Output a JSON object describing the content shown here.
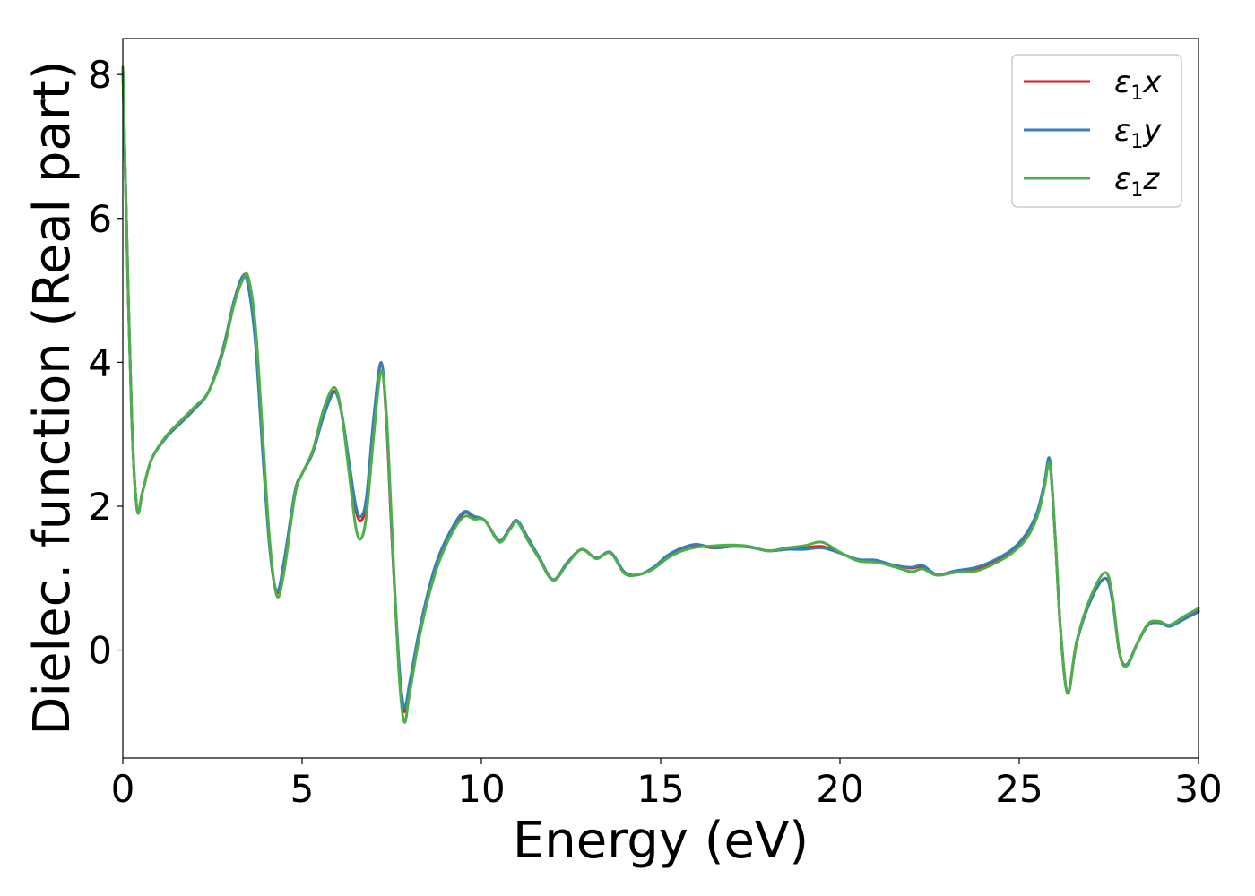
{
  "chart_data": {
    "type": "line",
    "xlabel": "Energy (eV)",
    "ylabel": "Dielec. function (Real part)",
    "xlim": [
      0,
      30
    ],
    "ylim": [
      -1.5,
      8.5
    ],
    "x_ticks": [
      0,
      5,
      10,
      15,
      20,
      25,
      30
    ],
    "y_ticks": [
      0,
      2,
      4,
      6,
      8
    ],
    "grid": false,
    "legend_position": "top-right",
    "series": [
      {
        "name": "ε1x",
        "legend_base": "ε",
        "legend_sub": "1",
        "legend_suffix": "x",
        "color": "#e41a1c",
        "x": [
          0,
          0.1,
          0.25,
          0.4,
          0.55,
          0.8,
          1.2,
          1.6,
          2.0,
          2.4,
          2.8,
          3.1,
          3.35,
          3.5,
          3.7,
          3.9,
          4.1,
          4.3,
          4.5,
          4.8,
          5.0,
          5.3,
          5.6,
          5.9,
          6.1,
          6.3,
          6.5,
          6.65,
          6.8,
          7.0,
          7.2,
          7.35,
          7.5,
          7.7,
          7.85,
          8.0,
          8.3,
          8.7,
          9.1,
          9.5,
          9.8,
          10.1,
          10.5,
          10.8,
          11.0,
          11.3,
          11.6,
          12.0,
          12.4,
          12.8,
          13.2,
          13.6,
          14.0,
          14.4,
          14.8,
          15.2,
          15.6,
          16.0,
          16.5,
          17.0,
          17.5,
          18.0,
          18.5,
          19.0,
          19.5,
          20.0,
          20.5,
          21.0,
          21.5,
          22.0,
          22.3,
          22.7,
          23.2,
          23.8,
          24.3,
          24.8,
          25.2,
          25.5,
          25.7,
          25.85,
          26.0,
          26.15,
          26.35,
          26.6,
          27.0,
          27.4,
          27.6,
          27.8,
          28.0,
          28.3,
          28.6,
          28.9,
          29.2,
          29.6,
          30.0
        ],
        "values": [
          8.1,
          6.0,
          3.2,
          1.95,
          2.2,
          2.65,
          2.95,
          3.15,
          3.35,
          3.6,
          4.2,
          4.85,
          5.2,
          5.1,
          4.3,
          2.8,
          1.4,
          0.8,
          1.2,
          2.2,
          2.45,
          2.75,
          3.3,
          3.6,
          3.3,
          2.6,
          1.95,
          1.8,
          2.1,
          3.2,
          3.98,
          3.2,
          1.6,
          -0.2,
          -0.85,
          -0.5,
          0.3,
          1.1,
          1.6,
          1.9,
          1.85,
          1.8,
          1.52,
          1.7,
          1.8,
          1.55,
          1.3,
          0.98,
          1.22,
          1.4,
          1.28,
          1.35,
          1.08,
          1.05,
          1.15,
          1.3,
          1.4,
          1.45,
          1.42,
          1.45,
          1.43,
          1.38,
          1.4,
          1.42,
          1.44,
          1.35,
          1.26,
          1.24,
          1.18,
          1.14,
          1.16,
          1.05,
          1.08,
          1.12,
          1.22,
          1.38,
          1.6,
          1.9,
          2.3,
          2.62,
          1.6,
          0.3,
          -0.6,
          0.1,
          0.7,
          1.0,
          0.7,
          -0.05,
          -0.2,
          0.1,
          0.35,
          0.38,
          0.35,
          0.45,
          0.55
        ]
      },
      {
        "name": "ε1y",
        "legend_base": "ε",
        "legend_sub": "1",
        "legend_suffix": "y",
        "color": "#377eb8",
        "x": [
          0,
          0.1,
          0.25,
          0.4,
          0.55,
          0.8,
          1.2,
          1.6,
          2.0,
          2.4,
          2.8,
          3.1,
          3.35,
          3.5,
          3.7,
          3.9,
          4.1,
          4.3,
          4.5,
          4.8,
          5.0,
          5.3,
          5.6,
          5.9,
          6.1,
          6.3,
          6.5,
          6.65,
          6.8,
          7.0,
          7.2,
          7.35,
          7.5,
          7.7,
          7.85,
          8.0,
          8.3,
          8.7,
          9.1,
          9.5,
          9.8,
          10.1,
          10.5,
          10.8,
          11.0,
          11.3,
          11.6,
          12.0,
          12.4,
          12.8,
          13.2,
          13.6,
          14.0,
          14.4,
          14.8,
          15.2,
          15.6,
          16.0,
          16.5,
          17.0,
          17.5,
          18.0,
          18.5,
          19.0,
          19.5,
          20.0,
          20.5,
          21.0,
          21.5,
          22.0,
          22.3,
          22.7,
          23.2,
          23.8,
          24.3,
          24.8,
          25.2,
          25.5,
          25.7,
          25.85,
          26.0,
          26.15,
          26.35,
          26.6,
          27.0,
          27.4,
          27.6,
          27.8,
          28.0,
          28.3,
          28.6,
          28.9,
          29.2,
          29.6,
          30.0
        ],
        "values": [
          8.1,
          6.0,
          3.2,
          1.95,
          2.2,
          2.65,
          2.95,
          3.15,
          3.35,
          3.6,
          4.2,
          4.85,
          5.2,
          5.05,
          4.25,
          2.75,
          1.4,
          0.82,
          1.25,
          2.2,
          2.45,
          2.75,
          3.25,
          3.58,
          3.3,
          2.65,
          2.0,
          1.86,
          2.15,
          3.25,
          4.0,
          3.25,
          1.65,
          -0.15,
          -0.8,
          -0.45,
          0.35,
          1.15,
          1.62,
          1.92,
          1.86,
          1.8,
          1.52,
          1.7,
          1.8,
          1.56,
          1.3,
          0.98,
          1.22,
          1.4,
          1.28,
          1.36,
          1.08,
          1.05,
          1.15,
          1.32,
          1.42,
          1.47,
          1.42,
          1.44,
          1.43,
          1.38,
          1.4,
          1.4,
          1.42,
          1.35,
          1.26,
          1.25,
          1.18,
          1.15,
          1.18,
          1.05,
          1.1,
          1.15,
          1.25,
          1.4,
          1.62,
          1.92,
          2.32,
          2.65,
          1.6,
          0.3,
          -0.6,
          0.1,
          0.7,
          1.0,
          0.68,
          -0.05,
          -0.2,
          0.1,
          0.35,
          0.38,
          0.33,
          0.43,
          0.53
        ]
      },
      {
        "name": "ε1z",
        "legend_base": "ε",
        "legend_sub": "1",
        "legend_suffix": "z",
        "color": "#4daf4a",
        "x": [
          0,
          0.1,
          0.25,
          0.4,
          0.55,
          0.8,
          1.2,
          1.6,
          2.0,
          2.4,
          2.8,
          3.1,
          3.35,
          3.5,
          3.7,
          3.9,
          4.1,
          4.3,
          4.5,
          4.8,
          5.0,
          5.3,
          5.6,
          5.9,
          6.1,
          6.3,
          6.5,
          6.65,
          6.8,
          7.0,
          7.2,
          7.35,
          7.5,
          7.7,
          7.85,
          8.0,
          8.3,
          8.7,
          9.1,
          9.5,
          9.8,
          10.1,
          10.5,
          10.8,
          11.0,
          11.3,
          11.6,
          12.0,
          12.4,
          12.8,
          13.2,
          13.6,
          14.0,
          14.4,
          14.8,
          15.2,
          15.6,
          16.0,
          16.5,
          17.0,
          17.5,
          18.0,
          18.5,
          19.0,
          19.5,
          20.0,
          20.5,
          21.0,
          21.5,
          22.0,
          22.3,
          22.7,
          23.2,
          23.8,
          24.3,
          24.8,
          25.2,
          25.5,
          25.7,
          25.85,
          26.0,
          26.15,
          26.35,
          26.6,
          27.0,
          27.4,
          27.6,
          27.8,
          28.0,
          28.3,
          28.6,
          28.9,
          29.2,
          29.6,
          30.0
        ],
        "values": [
          8.1,
          6.0,
          3.2,
          1.95,
          2.2,
          2.65,
          2.97,
          3.18,
          3.38,
          3.6,
          4.15,
          4.8,
          5.15,
          5.18,
          4.5,
          3.0,
          1.5,
          0.75,
          1.1,
          2.15,
          2.45,
          2.78,
          3.35,
          3.65,
          3.3,
          2.5,
          1.7,
          1.55,
          1.9,
          3.0,
          3.88,
          3.3,
          1.75,
          -0.3,
          -1.0,
          -0.6,
          0.25,
          1.05,
          1.55,
          1.85,
          1.82,
          1.8,
          1.5,
          1.68,
          1.78,
          1.52,
          1.28,
          0.97,
          1.2,
          1.4,
          1.27,
          1.35,
          1.06,
          1.05,
          1.13,
          1.28,
          1.38,
          1.43,
          1.45,
          1.46,
          1.44,
          1.38,
          1.42,
          1.45,
          1.5,
          1.36,
          1.24,
          1.22,
          1.16,
          1.09,
          1.13,
          1.04,
          1.08,
          1.1,
          1.2,
          1.35,
          1.55,
          1.85,
          2.25,
          2.58,
          1.6,
          0.3,
          -0.6,
          0.12,
          0.75,
          1.08,
          0.75,
          -0.05,
          -0.22,
          0.1,
          0.37,
          0.4,
          0.35,
          0.47,
          0.58
        ]
      }
    ]
  }
}
